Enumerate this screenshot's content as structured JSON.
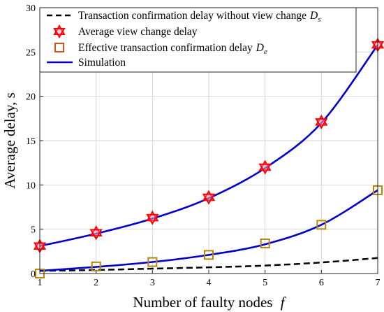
{
  "chart_data": {
    "type": "line",
    "title": "",
    "xlabel": "Number of faulty nodes",
    "xlabel_var": "f",
    "ylabel": "Average delay, s",
    "xlim": [
      1,
      7
    ],
    "ylim": [
      0,
      30
    ],
    "xticks": [
      1,
      2,
      3,
      4,
      5,
      6,
      7
    ],
    "yticks": [
      0,
      5,
      10,
      15,
      20,
      25,
      30
    ],
    "grid": true,
    "legend_position": "top",
    "x": [
      1,
      2,
      3,
      4,
      5,
      6,
      7
    ],
    "series": [
      {
        "name": "Transaction confirmation delay without view change",
        "name_math": "D",
        "name_sub": "s",
        "style": "dashed",
        "color": "#000000",
        "values": [
          0.3,
          0.4,
          0.55,
          0.7,
          0.9,
          1.25,
          1.75
        ]
      },
      {
        "name": "Average view change delay",
        "style": "marker",
        "marker": "hexagram",
        "color": "#ff0000",
        "values": [
          3.1,
          4.6,
          6.3,
          8.6,
          12.0,
          17.1,
          25.8
        ]
      },
      {
        "name": "Effective transaction confirmation delay",
        "name_math": "D",
        "name_sub": "e",
        "style": "marker",
        "marker": "square",
        "color": "#d95319",
        "values": [
          0.0,
          0.8,
          1.3,
          2.1,
          3.4,
          5.5,
          9.4
        ]
      },
      {
        "name": "Simulation",
        "style": "solid",
        "color": "#0000cc",
        "values_upper": [
          3.1,
          4.5,
          6.2,
          8.5,
          11.9,
          17.0,
          25.8
        ],
        "values_lower": [
          0.3,
          0.75,
          1.3,
          2.1,
          3.3,
          5.5,
          9.4
        ]
      }
    ]
  }
}
